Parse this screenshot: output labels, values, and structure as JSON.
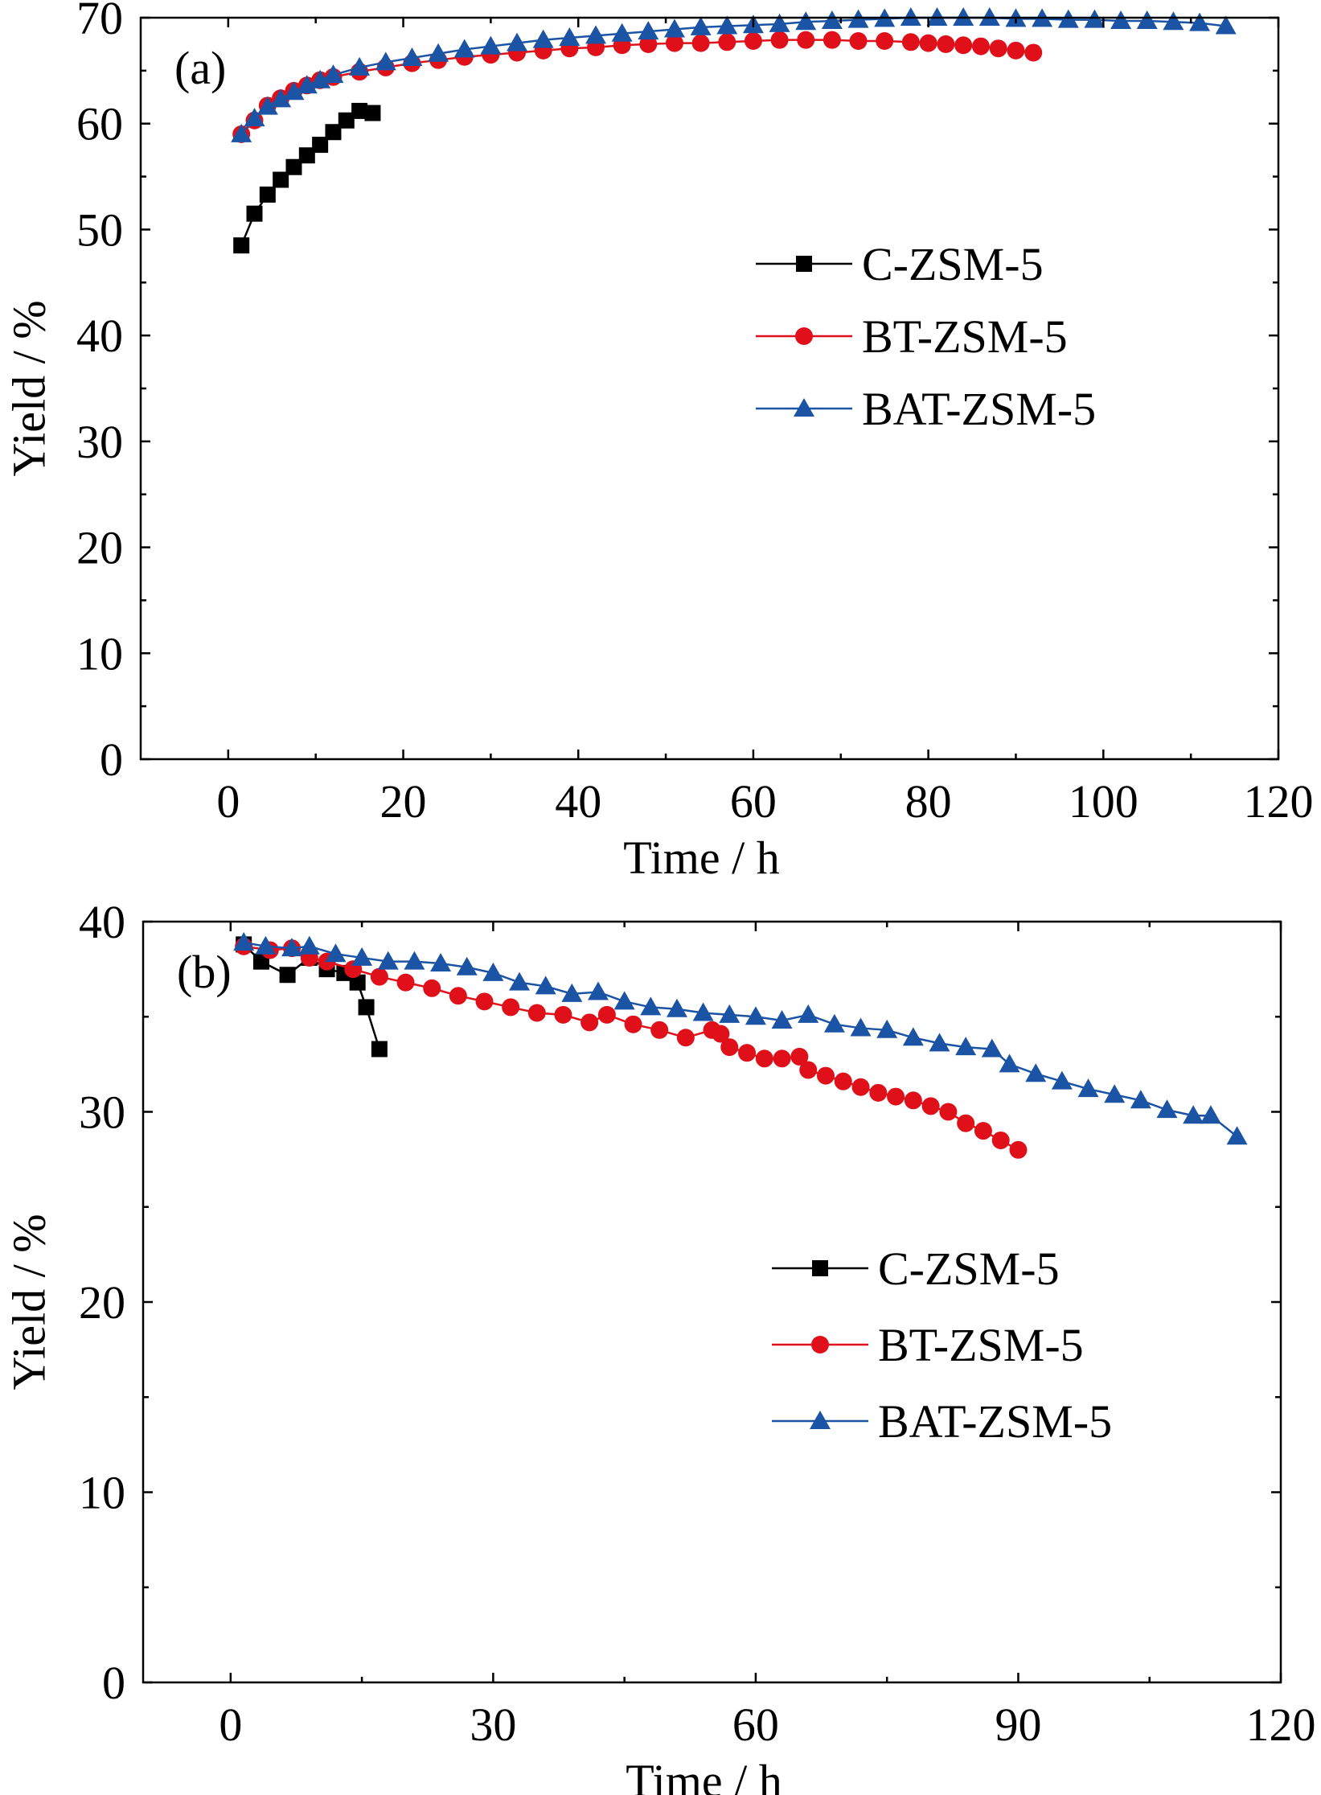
{
  "chart_data": [
    {
      "type": "scatter",
      "panel_label": "(a)",
      "xlabel": "Time / h",
      "ylabel": "Yield / %",
      "xlim": [
        -10,
        120
      ],
      "ylim": [
        0,
        70
      ],
      "xticks": [
        0,
        20,
        40,
        60,
        80,
        100,
        120
      ],
      "yticks": [
        0,
        10,
        20,
        30,
        40,
        50,
        60,
        70
      ],
      "x_minor_step": 10,
      "y_minor_step": 5,
      "grid": false,
      "legend": "center-right",
      "series": [
        {
          "name": "C-ZSM-5",
          "color": "#000000",
          "marker": "square",
          "x": [
            1.5,
            3,
            4.5,
            6,
            7.5,
            9,
            10.5,
            12,
            13.5,
            15,
            16.5
          ],
          "y": [
            48.5,
            51.5,
            53.3,
            54.7,
            55.9,
            57,
            58,
            59.2,
            60.3,
            61.2,
            61
          ]
        },
        {
          "name": "BT-ZSM-5",
          "color": "#e0101b",
          "marker": "circle",
          "x": [
            1.5,
            3,
            4.5,
            6,
            7.5,
            9,
            10.5,
            12,
            15,
            18,
            21,
            24,
            27,
            30,
            33,
            36,
            39,
            42,
            45,
            48,
            51,
            54,
            57,
            60,
            63,
            66,
            69,
            72,
            75,
            78,
            80,
            82,
            84,
            86,
            88,
            90,
            92
          ],
          "y": [
            59,
            60.3,
            61.7,
            62.4,
            63.1,
            63.6,
            64.1,
            64.4,
            64.9,
            65.3,
            65.7,
            66,
            66.3,
            66.5,
            66.7,
            66.9,
            67.1,
            67.2,
            67.4,
            67.5,
            67.6,
            67.6,
            67.7,
            67.8,
            67.9,
            67.9,
            67.9,
            67.8,
            67.8,
            67.7,
            67.6,
            67.5,
            67.4,
            67.3,
            67.1,
            66.9,
            66.7
          ]
        },
        {
          "name": "BAT-ZSM-5",
          "color": "#1c54a5",
          "marker": "triangle",
          "x": [
            1.5,
            3,
            4.5,
            6,
            7.5,
            9,
            10.5,
            12,
            15,
            18,
            21,
            24,
            27,
            30,
            33,
            36,
            39,
            42,
            45,
            48,
            51,
            54,
            57,
            60,
            63,
            66,
            69,
            72,
            75,
            78,
            81,
            84,
            87,
            90,
            93,
            96,
            99,
            102,
            105,
            108,
            111,
            114
          ],
          "y": [
            59,
            60.5,
            61.6,
            62.3,
            63,
            63.6,
            64.1,
            64.6,
            65.3,
            65.8,
            66.2,
            66.6,
            67,
            67.3,
            67.6,
            67.9,
            68.1,
            68.3,
            68.5,
            68.7,
            68.9,
            69.1,
            69.2,
            69.3,
            69.4,
            69.6,
            69.7,
            69.8,
            69.9,
            70,
            70,
            70,
            70,
            69.9,
            69.9,
            69.8,
            69.8,
            69.7,
            69.7,
            69.6,
            69.5,
            69.2
          ]
        }
      ]
    },
    {
      "type": "scatter",
      "panel_label": "(b)",
      "xlabel": "Time / h",
      "ylabel": "Yield / %",
      "xlim": [
        -10,
        120
      ],
      "ylim": [
        0,
        40
      ],
      "xticks": [
        0,
        30,
        60,
        90,
        120
      ],
      "yticks": [
        0,
        10,
        20,
        30,
        40
      ],
      "x_minor_step": 15,
      "y_minor_step": 5,
      "grid": false,
      "legend": "center-right",
      "series": [
        {
          "name": "C-ZSM-5",
          "color": "#000000",
          "marker": "square",
          "x": [
            1.5,
            3.5,
            6.5,
            9,
            11,
            13,
            14.5,
            15.5,
            17
          ],
          "y": [
            38.8,
            37.9,
            37.2,
            38.1,
            37.5,
            37.3,
            36.8,
            35.5,
            33.3
          ]
        },
        {
          "name": "BT-ZSM-5",
          "color": "#e0101b",
          "marker": "circle",
          "x": [
            1.5,
            4.5,
            7,
            9,
            11,
            14,
            17,
            20,
            23,
            26,
            29,
            32,
            35,
            38,
            41,
            43,
            46,
            49,
            52,
            55,
            56,
            57,
            59,
            61,
            63,
            65,
            66,
            68,
            70,
            72,
            74,
            76,
            78,
            80,
            82,
            84,
            86,
            88,
            90
          ],
          "y": [
            38.7,
            38.5,
            38.6,
            38.1,
            37.9,
            37.5,
            37.1,
            36.8,
            36.5,
            36.1,
            35.8,
            35.5,
            35.2,
            35.1,
            34.7,
            35.1,
            34.6,
            34.3,
            33.9,
            34.3,
            34.1,
            33.4,
            33.1,
            32.8,
            32.8,
            32.9,
            32.2,
            31.9,
            31.6,
            31.3,
            31,
            30.8,
            30.6,
            30.3,
            30,
            29.4,
            29,
            28.5,
            28
          ]
        },
        {
          "name": "BAT-ZSM-5",
          "color": "#1c54a5",
          "marker": "triangle",
          "x": [
            1.5,
            4,
            7,
            9,
            12,
            15,
            18,
            21,
            24,
            27,
            30,
            33,
            36,
            39,
            42,
            45,
            48,
            51,
            54,
            57,
            60,
            63,
            66,
            69,
            72,
            75,
            78,
            81,
            84,
            87,
            89,
            92,
            95,
            98,
            101,
            104,
            107,
            110,
            112,
            115
          ],
          "y": [
            38.9,
            38.7,
            38.6,
            38.7,
            38.3,
            38.1,
            37.9,
            37.9,
            37.8,
            37.6,
            37.3,
            36.8,
            36.6,
            36.2,
            36.3,
            35.8,
            35.5,
            35.4,
            35.2,
            35.1,
            35,
            34.8,
            35.1,
            34.6,
            34.4,
            34.3,
            33.9,
            33.6,
            33.4,
            33.3,
            32.5,
            32,
            31.6,
            31.2,
            30.9,
            30.6,
            30.1,
            29.8,
            29.8,
            28.7
          ]
        }
      ]
    }
  ]
}
